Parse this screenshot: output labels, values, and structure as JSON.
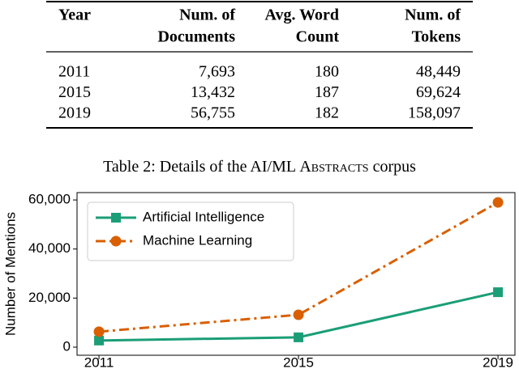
{
  "table": {
    "header": [
      [
        "Year"
      ],
      [
        "Num. of",
        "Documents"
      ],
      [
        "Avg. Word",
        "Count"
      ],
      [
        "Num. of",
        "Tokens"
      ]
    ],
    "rows": [
      [
        "2011",
        "7,693",
        "180",
        "48,449"
      ],
      [
        "2015",
        "13,432",
        "187",
        "69,624"
      ],
      [
        "2019",
        "56,755",
        "182",
        "158,097"
      ]
    ],
    "caption": {
      "prefix": "Table 2: Details of the AI/ML",
      "smallcaps": "Abstracts",
      "suffix": "corpus"
    }
  },
  "chart_data": {
    "type": "line",
    "x": [
      2011,
      2015,
      2019
    ],
    "xlim": [
      2010.56,
      2019.34
    ],
    "xticks": [
      2011,
      2015,
      2019
    ],
    "ylim": [
      -3300,
      63000
    ],
    "yticks": [
      0,
      {
        "value": 20000,
        "label": "20,000"
      },
      {
        "value": 40000,
        "label": "40,000"
      },
      {
        "value": 60000,
        "label": "60,000"
      }
    ],
    "y_label": "Number of Mentions",
    "legend": "upper left",
    "series": [
      {
        "name": "Artificial Intelligence",
        "color": "#1b9e77",
        "marker": "square",
        "dash": "solid",
        "values": [
          2700,
          4000,
          22400
        ]
      },
      {
        "name": "Machine Learning",
        "color": "#d95f02",
        "marker": "circle",
        "dash": "dashdot",
        "values": [
          6300,
          13200,
          59000
        ]
      }
    ]
  }
}
